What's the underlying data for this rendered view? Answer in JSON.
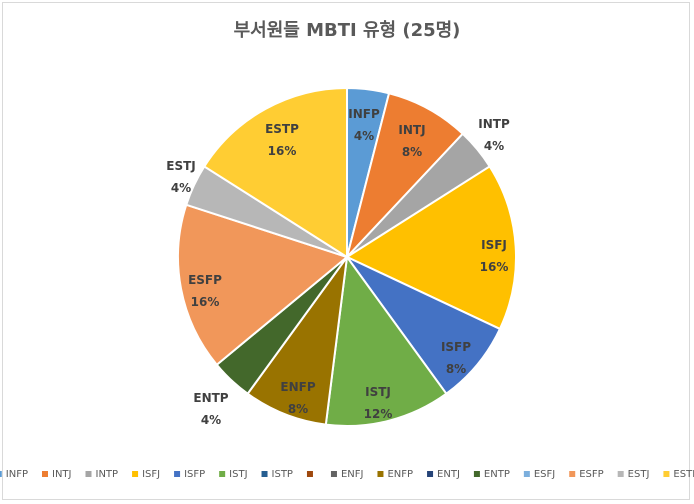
{
  "chart_data": {
    "type": "pie",
    "title": "부서원들 MBTI 유형 (25명)",
    "slices": [
      {
        "name": "INFP",
        "value": 4,
        "label": "4%",
        "color": "#5b9bd5"
      },
      {
        "name": "INTJ",
        "value": 8,
        "label": "8%",
        "color": "#ed7d31"
      },
      {
        "name": "INTP",
        "value": 4,
        "label": "4%",
        "color": "#a5a5a5"
      },
      {
        "name": "ISFJ",
        "value": 16,
        "label": "16%",
        "color": "#ffc000"
      },
      {
        "name": "ISFP",
        "value": 8,
        "label": "8%",
        "color": "#4472c4"
      },
      {
        "name": "ISTJ",
        "value": 12,
        "label": "12%",
        "color": "#70ad47"
      },
      {
        "name": "ISTP",
        "value": 0,
        "label": "",
        "color": "#255e91"
      },
      {
        "name": "",
        "value": 0,
        "label": "",
        "color": "#9e480e"
      },
      {
        "name": "ENFJ",
        "value": 0,
        "label": "",
        "color": "#636363"
      },
      {
        "name": "ENFP",
        "value": 8,
        "label": "8%",
        "color": "#997300"
      },
      {
        "name": "ENTJ",
        "value": 0,
        "label": "",
        "color": "#264478"
      },
      {
        "name": "ENTP",
        "value": 4,
        "label": "4%",
        "color": "#43682b"
      },
      {
        "name": "ESFJ",
        "value": 0,
        "label": "",
        "color": "#7cafdd"
      },
      {
        "name": "ESFP",
        "value": 16,
        "label": "16%",
        "color": "#f1975a"
      },
      {
        "name": "ESTJ",
        "value": 4,
        "label": "4%",
        "color": "#b7b7b7"
      },
      {
        "name": "ESTP",
        "value": 16,
        "label": "16%",
        "color": "#ffcd33"
      }
    ],
    "legend_position": "bottom",
    "start_angle": "12 o'clock",
    "direction": "clockwise"
  }
}
